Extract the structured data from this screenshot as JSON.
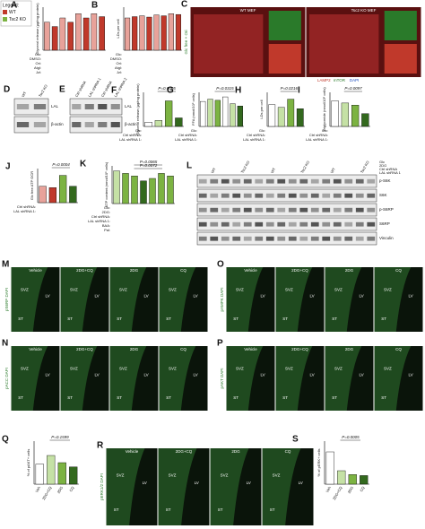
{
  "legend": {
    "title": "Legend:",
    "items": [
      {
        "name": "WT",
        "color": "#c0392b"
      },
      {
        "name": "Tsc2 KO",
        "color": "#7cb342"
      }
    ]
  },
  "charts": [
    {
      "letter": "A",
      "ylabel": "Glycerol release (µg/mg protein)",
      "ylim": [
        0,
        10
      ],
      "values": [
        6.5,
        5.5,
        7.5,
        6.5,
        8.5,
        7.5,
        8.5,
        7.8
      ],
      "colors": [
        "#e8a29a",
        "#c0392b",
        "#e8a29a",
        "#c0392b",
        "#e8a29a",
        "#c0392b",
        "#e8a29a",
        "#c0392b"
      ],
      "row_labels": [
        "Glc:",
        "DMSO:",
        "Ori:",
        "Atgl:",
        "Jzl:"
      ]
    },
    {
      "letter": "B",
      "ylabel": "LDs per cell",
      "ylim": [
        0,
        100
      ],
      "values": [
        75,
        78,
        80,
        77,
        82,
        80,
        85,
        83
      ],
      "colors": [
        "#e8a29a",
        "#c0392b",
        "#e8a29a",
        "#c0392b",
        "#e8a29a",
        "#c0392b",
        "#e8a29a",
        "#c0392b"
      ],
      "row_labels": [
        "Glc:",
        "DMSO:",
        "Ori:",
        "Atgl:",
        "Jzl:"
      ]
    },
    {
      "letter": "F",
      "ylabel": "Glycerol release (µg/mg protein)",
      "ylim": [
        0,
        8
      ],
      "values": [
        1,
        1.4,
        6,
        2
      ],
      "colors": [
        "#ffffff",
        "#c5e1a5",
        "#7cb342",
        "#33691e"
      ],
      "pvalues": [
        "P=0.0005"
      ],
      "row_labels": [
        "Glc:",
        "Ctrl shRNA:",
        "LAL shRNA 1:"
      ]
    },
    {
      "letter": "G",
      "ylabel": "FFA (nmol/10⁶ cells)",
      "ylim": [
        0,
        3000
      ],
      "values": [
        2200,
        2400,
        2300,
        2600,
        2000,
        1800
      ],
      "colors": [
        "#ffffff",
        "#c5e1a5",
        "#7cb342",
        "#ffffff",
        "#c5e1a5",
        "#33691e"
      ],
      "pvalues": [
        "P=0.0315"
      ],
      "row_labels": [
        "Glc:",
        "Ctrl shRNA:",
        "LAL shRNA 1:"
      ]
    },
    {
      "letter": "H",
      "ylabel": "LDs per cell",
      "ylim": [
        0,
        25
      ],
      "values": [
        16,
        14,
        20,
        13
      ],
      "colors": [
        "#ffffff",
        "#c5e1a5",
        "#7cb342",
        "#33691e"
      ],
      "pvalues": [
        "P=0.0216"
      ],
      "row_labels": [
        "Glc:",
        "Ctrl shRNA:",
        "LAL shRNA 1:"
      ]
    },
    {
      "letter": "I",
      "ylabel": "Triglyceride (nmol/10⁶ cells)",
      "ylim": [
        0,
        8
      ],
      "values": [
        6,
        5.5,
        5,
        3
      ],
      "colors": [
        "#ffffff",
        "#c5e1a5",
        "#7cb342",
        "#33691e"
      ],
      "pvalues": [
        "P=0.0097"
      ],
      "row_labels": [
        "Glc:",
        "Ctrl shRNA:",
        "LAL shRNA 1:"
      ]
    },
    {
      "letter": "J",
      "ylabel": "Glc free ATP OCR",
      "ylim": [
        0,
        25
      ],
      "values": [
        12,
        11,
        20,
        12
      ],
      "colors": [
        "#e8a29a",
        "#c0392b",
        "#7cb342",
        "#33691e"
      ],
      "pvalues": [
        "P=0.0004"
      ],
      "row_labels": [
        "Ctrl shRNA:",
        "LAL shRNA 1:"
      ]
    },
    {
      "letter": "K",
      "ylabel": "ATP content (nmol/10⁶ cells)",
      "ylim": [
        0,
        15
      ],
      "values": [
        13,
        12,
        11,
        9,
        10,
        12,
        11
      ],
      "colors": [
        "#c5e1a5",
        "#7cb342",
        "#7cb342",
        "#33691e",
        "#7cb342",
        "#7cb342",
        "#7cb342"
      ],
      "pvalues": [
        "P=0.0065",
        "P=0.0072"
      ],
      "row_labels": [
        "Glc:",
        "2DG:",
        "Ctrl shRNA:",
        "LAL shRNA 1:",
        "BAA:",
        "Pal:"
      ]
    },
    {
      "letter": "Q",
      "ylabel": "% of pAKT+ cells",
      "ylim": [
        0,
        30
      ],
      "values": [
        14,
        20,
        15,
        12
      ],
      "colors": [
        "#ffffff",
        "#c5e1a5",
        "#7cb342",
        "#33691e"
      ],
      "pvalues": [
        "P=0.1599"
      ],
      "categories": [
        "Veh",
        "2DG+CQ",
        "2DG",
        "CQ"
      ]
    },
    {
      "letter": "S",
      "ylabel": "% of pERK+ cells",
      "ylim": [
        0,
        8
      ],
      "values": [
        6,
        2.5,
        1.8,
        1.6
      ],
      "colors": [
        "#ffffff",
        "#c5e1a5",
        "#7cb342",
        "#33691e"
      ],
      "pvalues": [
        "P=0.0005"
      ],
      "categories": [
        "Veh",
        "2DG+CQ",
        "2DG",
        "CQ"
      ]
    }
  ],
  "images": [
    {
      "letter": "C",
      "tiles": [
        "WT MEF",
        "Tsc2 KO MEF"
      ],
      "side": "Glc free + Ori",
      "caption": [
        "LAMP2",
        "mTOR",
        "DAPI"
      ]
    },
    {
      "letter": "M",
      "tiles": [
        "Vehicle",
        "2DG+CQ",
        "2DG",
        "CQ"
      ],
      "side": "pS6RP DAPI",
      "regions": [
        "SVZ",
        "LV",
        "ST"
      ]
    },
    {
      "letter": "O",
      "tiles": [
        "Vehicle",
        "2DG+CQ",
        "2DG",
        "CQ"
      ],
      "side": "pAMPK DAPI",
      "regions": [
        "SVZ",
        "LV",
        "ST"
      ]
    },
    {
      "letter": "N",
      "tiles": [
        "Vehicle",
        "2DG+CQ",
        "2DG",
        "CQ"
      ],
      "side": "pACC DAPI",
      "regions": [
        "SVZ",
        "LV",
        "ST"
      ]
    },
    {
      "letter": "P",
      "tiles": [
        "Vehicle",
        "2DG+CQ",
        "2DG",
        "CQ"
      ],
      "side": "pAKT DAPI",
      "regions": [
        "SVZ",
        "LV",
        "ST"
      ]
    },
    {
      "letter": "R",
      "tiles": [
        "Vehicle",
        "2DG+CQ",
        "2DG",
        "CQ"
      ],
      "side": "pERK1/2 DAPI",
      "regions": [
        "SVZ",
        "LV",
        "ST"
      ]
    }
  ],
  "blots": [
    {
      "letter": "D",
      "lanes": [
        "WT",
        "Tsc2 KO"
      ],
      "bands": [
        "LAL",
        "β-actin"
      ]
    },
    {
      "letter": "E",
      "lanes": [
        "Ctrl shRNA",
        "LAL shRNA 1",
        "Ctrl shRNA",
        "LAL shRNA 2"
      ],
      "bands": [
        "LAL",
        "β-actin"
      ]
    },
    {
      "letter": "L",
      "lanes": [
        "WT",
        "Tsc2 KO",
        "WT",
        "Tsc2 KO",
        "WT",
        "Tsc2 KO"
      ],
      "rows": [
        "Glc",
        "2DG",
        "Ctrl shRNA",
        "LAL shRNA 1"
      ],
      "bands": [
        "p-S6K",
        "S6K",
        "p-S6RP",
        "S6RP",
        "Vinculin"
      ]
    }
  ]
}
